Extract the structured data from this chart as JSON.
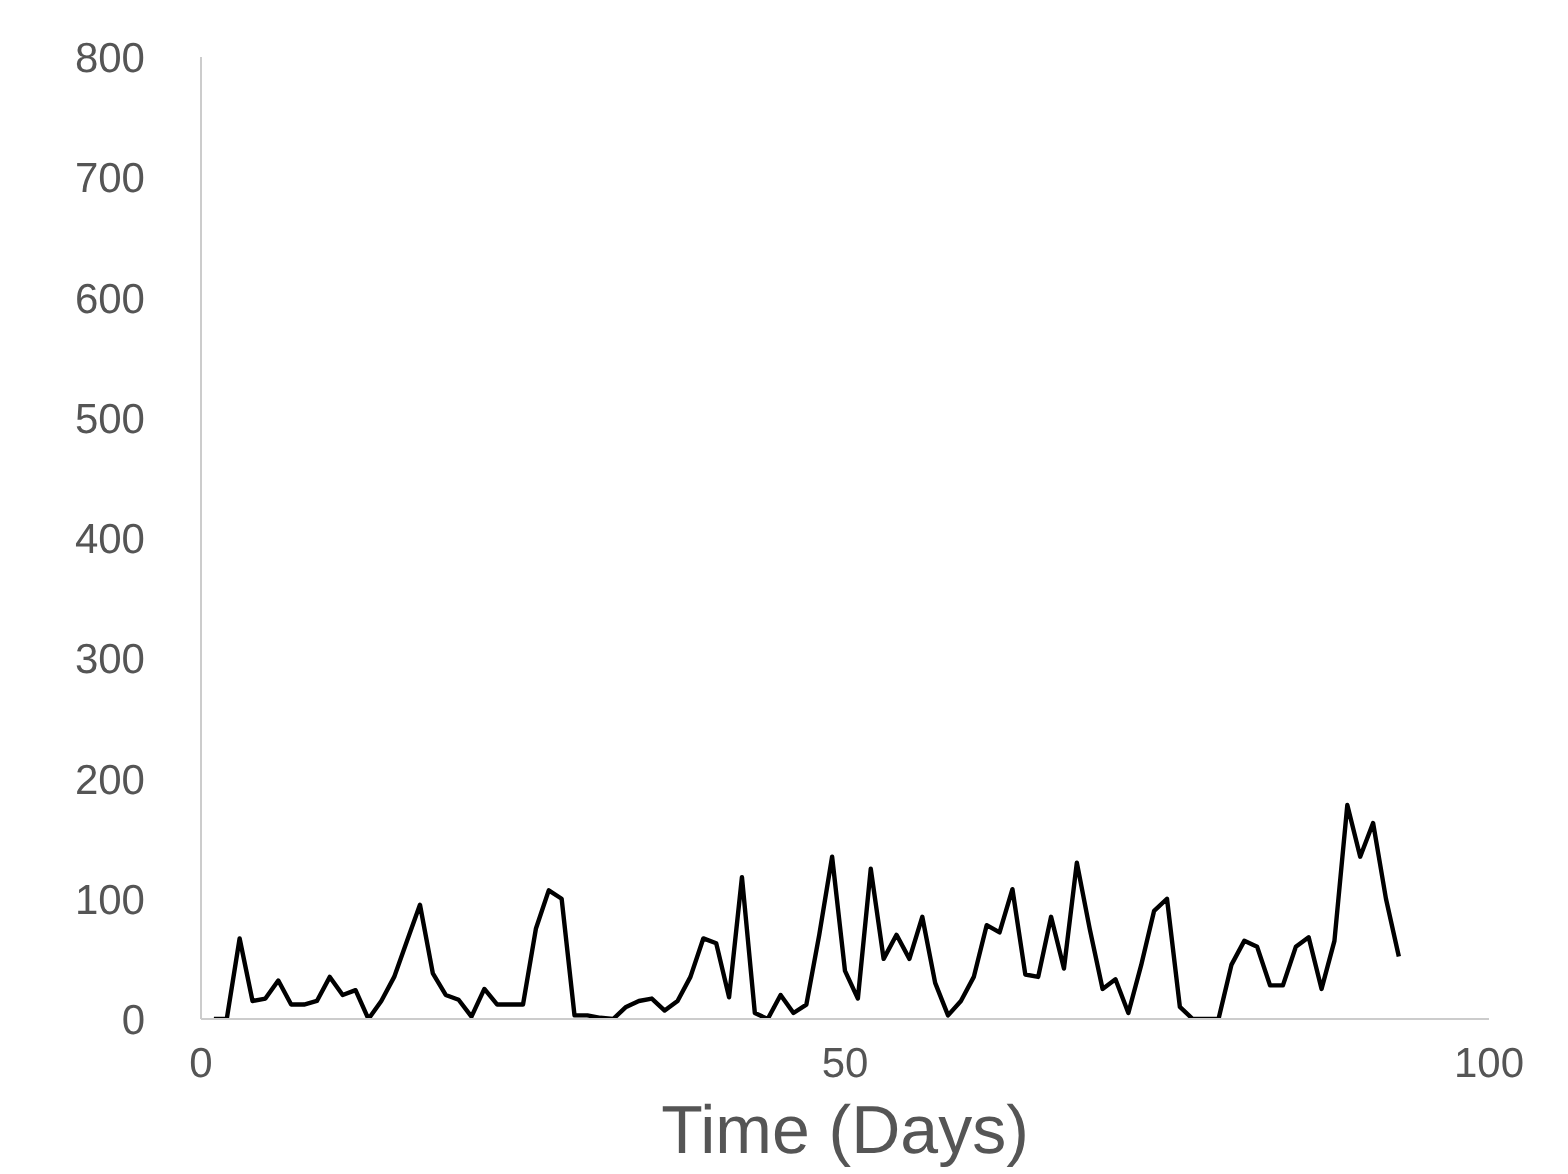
{
  "chart_data": {
    "type": "line",
    "xlabel": "Time (Days)",
    "x": [
      1,
      2,
      3,
      4,
      5,
      6,
      7,
      8,
      9,
      10,
      11,
      12,
      13,
      14,
      15,
      16,
      17,
      18,
      19,
      20,
      21,
      22,
      23,
      24,
      25,
      26,
      27,
      28,
      29,
      30,
      31,
      32,
      33,
      34,
      35,
      36,
      37,
      38,
      39,
      40,
      41,
      42,
      43,
      44,
      45,
      46,
      47,
      48,
      49,
      50,
      51,
      52,
      53,
      54,
      55,
      56,
      57,
      58,
      59,
      60,
      61,
      62,
      63,
      64,
      65,
      66,
      67,
      68,
      69,
      70,
      71,
      72,
      73,
      74,
      75,
      76,
      77,
      78,
      79,
      80,
      81,
      82,
      83,
      84,
      85,
      86,
      87,
      88,
      89,
      90,
      91,
      92,
      93
    ],
    "series": [
      {
        "color": "#000000",
        "values": [
          0,
          0,
          67,
          15,
          17,
          32,
          12,
          12,
          15,
          35,
          20,
          24,
          0,
          15,
          35,
          65,
          95,
          38,
          20,
          16,
          2,
          25,
          12,
          12,
          12,
          75,
          107,
          100,
          3,
          3,
          1,
          0,
          10,
          15,
          17,
          7,
          15,
          35,
          67,
          63,
          18,
          118,
          5,
          0,
          20,
          5,
          12,
          70,
          135,
          40,
          17,
          125,
          50,
          70,
          50,
          85,
          30,
          3,
          15,
          35,
          78,
          72,
          108,
          37,
          35,
          85,
          42,
          130,
          75,
          25,
          33,
          5,
          45,
          90,
          100,
          10,
          0,
          0,
          0,
          45,
          65,
          60,
          28,
          28,
          60,
          68,
          25,
          65,
          178,
          135,
          163,
          100,
          52
        ]
      }
    ],
    "xlim": [
      0,
      100
    ],
    "ylim": [
      0,
      800
    ],
    "xticks": [
      0,
      50,
      100
    ],
    "yticks": [
      0,
      100,
      200,
      300,
      400,
      500,
      600,
      700,
      800
    ],
    "grid": false,
    "marker": "none",
    "line_style": "solid"
  }
}
